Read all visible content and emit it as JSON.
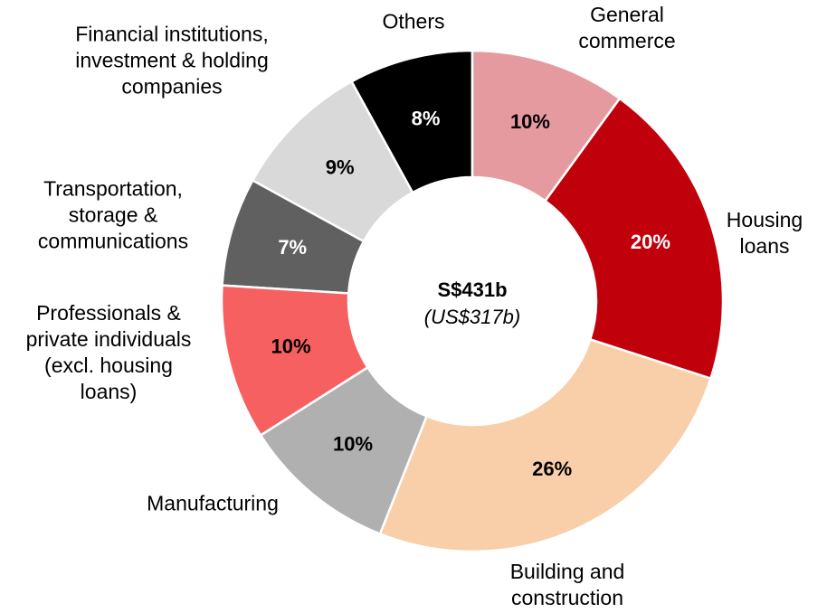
{
  "chart_data": {
    "type": "donut",
    "categories": [
      "General\ncommerce",
      "Housing\nloans",
      "Building and\nconstruction",
      "Manufacturing",
      "Professionals &\nprivate individuals\n(excl. housing\nloans)",
      "Transportation,\nstorage &\ncommunications",
      "Financial institutions,\ninvestment & holding\ncompanies",
      "Others"
    ],
    "values": [
      10,
      20,
      26,
      10,
      10,
      7,
      9,
      8
    ],
    "value_labels": [
      "10%",
      "20%",
      "26%",
      "10%",
      "10%",
      "7%",
      "9%",
      "8%"
    ],
    "colors": [
      "#e59aa0",
      "#c0000b",
      "#f8cfa8",
      "#b0b0b0",
      "#f76060",
      "#606060",
      "#d9d9d9",
      "#000000"
    ],
    "annotations": [
      "S$431b",
      "(US$317b)"
    ]
  }
}
